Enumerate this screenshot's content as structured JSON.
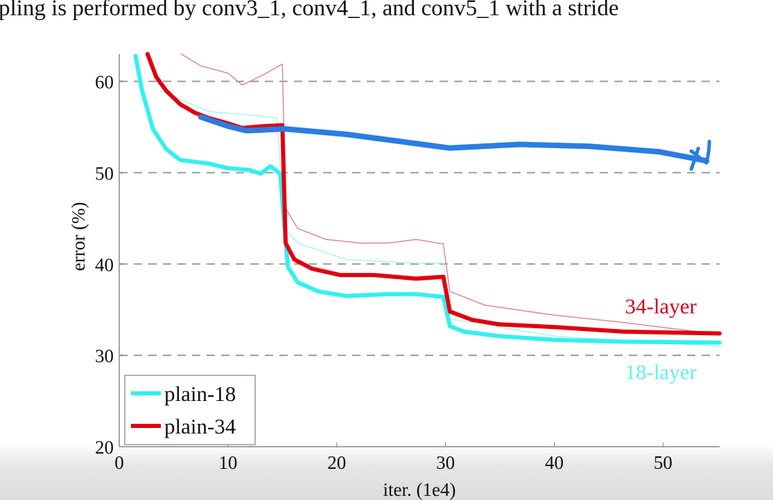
{
  "caption": "pling is performed by conv3_1, conv4_1, and conv5_1 with a stride",
  "chart_data": {
    "type": "line",
    "xlabel": "iter. (1e4)",
    "ylabel": "error (%)",
    "xlim": [
      0,
      55.2
    ],
    "ylim": [
      20,
      63
    ],
    "xticks": [
      0,
      10,
      20,
      30,
      40,
      50
    ],
    "yticks": [
      20,
      30,
      40,
      50,
      60
    ],
    "grid": "dashed horizontal",
    "legend": {
      "placement": "bottom-left",
      "entries": [
        "plain-18",
        "plain-34"
      ]
    },
    "annotations": [
      {
        "text": "34-layer",
        "color": "#d0021b",
        "x": 46.5,
        "y": 34.6
      },
      {
        "text": "18-layer",
        "color": "#5ff0f0",
        "x": 46.5,
        "y": 27.4
      }
    ],
    "series": [
      {
        "name": "plain-18",
        "role": "val",
        "color": "#33f0f0",
        "x": [
          1.5,
          2.1,
          3.1,
          4.3,
          5.6,
          8.2,
          10,
          12,
          13,
          13.9,
          14.8,
          15.2,
          15.5,
          16.4,
          18.3,
          20.9,
          24.7,
          27.3,
          29.8,
          30.4,
          31.7,
          34.9,
          40,
          46.4,
          55.2
        ],
        "y": [
          62.8,
          59,
          54.8,
          52.6,
          51.4,
          51,
          50.5,
          50.3,
          49.9,
          50.7,
          49.9,
          43.9,
          39.7,
          38,
          37,
          36.5,
          36.7,
          36.7,
          36.4,
          33.2,
          32.6,
          32.1,
          31.7,
          31.5,
          31.4
        ]
      },
      {
        "name": "plain-34",
        "role": "val",
        "color": "#e0000f",
        "x": [
          2.6,
          3.4,
          4.3,
          5.6,
          6.9,
          8.2,
          10,
          11.3,
          13.2,
          15,
          15.3,
          16.1,
          17.7,
          20.3,
          23.4,
          27.3,
          29.8,
          30.4,
          32.4,
          34.9,
          40,
          46.4,
          55.2
        ],
        "y": [
          63,
          60.5,
          59,
          57.5,
          56.6,
          56,
          55.4,
          54.9,
          55.1,
          55.2,
          42.3,
          40.5,
          39.5,
          38.8,
          38.8,
          38.4,
          38.6,
          34.8,
          33.9,
          33.4,
          33.1,
          32.6,
          32.4
        ]
      },
      {
        "name": "plain-18 train",
        "role": "train",
        "color": "#a8f5f0",
        "x": [
          3.7,
          8.2,
          11.3,
          14.5,
          15.2,
          16.4,
          20.9,
          27.3,
          29.8,
          30.4,
          40,
          55.2
        ],
        "y": [
          59,
          56.7,
          56.4,
          56,
          43.9,
          42.3,
          40.5,
          40.1,
          40.1,
          34,
          32.1,
          31
        ]
      },
      {
        "name": "plain-34 train",
        "role": "train",
        "color": "#d98a95",
        "x": [
          5.7,
          7.5,
          10,
          11.3,
          13.2,
          15,
          15.3,
          16.4,
          19,
          22.2,
          24.7,
          27.3,
          29.8,
          30.4,
          33.6,
          40,
          46.4,
          55.2
        ],
        "y": [
          63,
          61.7,
          60.9,
          59.6,
          60.7,
          61.9,
          46.1,
          43.9,
          42.7,
          42.3,
          42.3,
          42.7,
          42.2,
          37,
          35.5,
          34.4,
          33.6,
          32.3
        ]
      },
      {
        "name": "hand-drawn line",
        "role": "annotation",
        "color": "#2a7de1",
        "x": [
          7.5,
          10,
          11.7,
          15.2,
          20.9,
          24.7,
          30.4,
          36.8,
          43.2,
          49.6,
          52.7,
          54
        ],
        "y": [
          56.1,
          55.1,
          54.6,
          54.8,
          54.2,
          53.6,
          52.7,
          53.1,
          52.9,
          52.3,
          51.6,
          51.3
        ]
      }
    ]
  }
}
